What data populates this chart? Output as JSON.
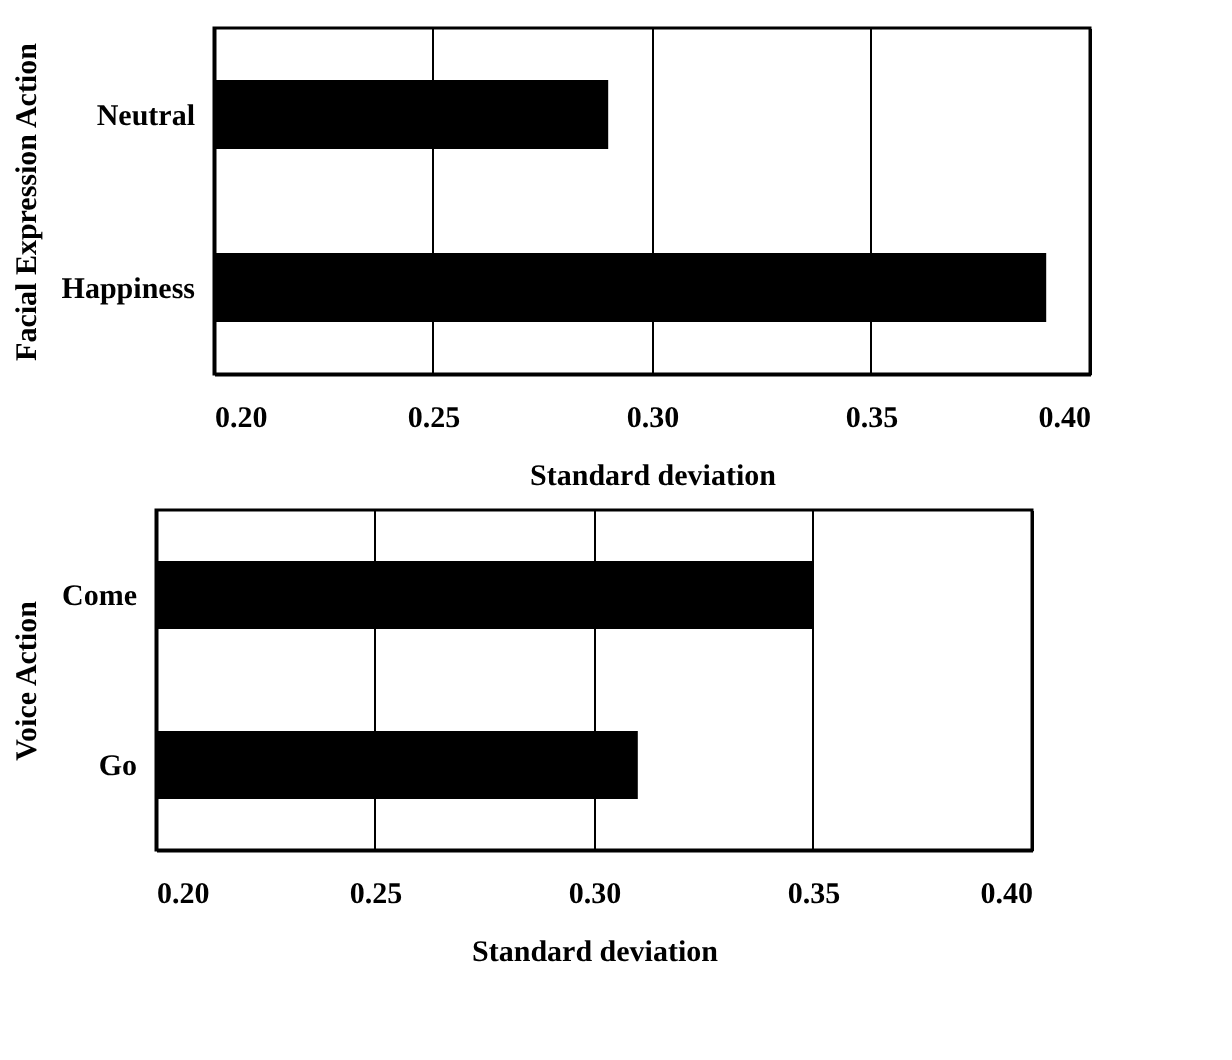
{
  "chart_data": [
    {
      "type": "bar",
      "orientation": "horizontal",
      "categories": [
        "Neutral",
        "Happiness"
      ],
      "series": [
        {
          "color": "#000000",
          "values": [
            0.29,
            0.39
          ]
        }
      ],
      "xlim": [
        0.2,
        0.4
      ],
      "xticks": [
        {
          "value": 0.2,
          "label": "0.20"
        },
        {
          "value": 0.25,
          "label": "0.25"
        },
        {
          "value": 0.3,
          "label": "0.30"
        },
        {
          "value": 0.35,
          "label": "0.35"
        },
        {
          "value": 0.4,
          "label": "0.40"
        }
      ],
      "xlabel": "Standard deviation",
      "ylabel": "Facial Expression Action",
      "grid": "x"
    },
    {
      "type": "bar",
      "orientation": "horizontal",
      "categories": [
        "Come",
        "Go"
      ],
      "series": [
        {
          "color": "#000000",
          "values": [
            0.35,
            0.31
          ]
        }
      ],
      "xlim": [
        0.2,
        0.4
      ],
      "xticks": [
        {
          "value": 0.2,
          "label": "0.20"
        },
        {
          "value": 0.25,
          "label": "0.25"
        },
        {
          "value": 0.3,
          "label": "0.30"
        },
        {
          "value": 0.35,
          "label": "0.35"
        },
        {
          "value": 0.4,
          "label": "0.40"
        }
      ],
      "xlabel": "Standard deviation",
      "ylabel": "Voice Action",
      "grid": "x"
    }
  ]
}
